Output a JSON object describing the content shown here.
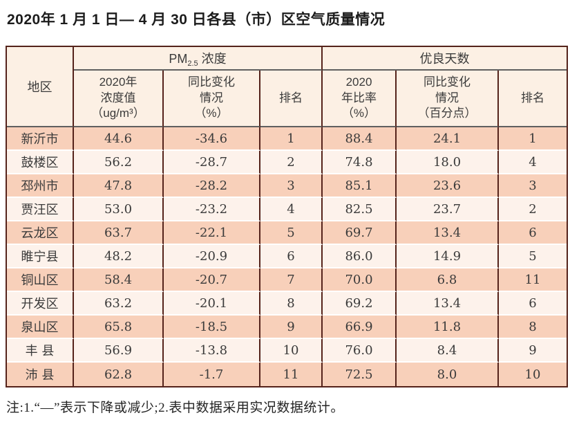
{
  "title": "2020年 1 月 1 日— 4 月 30 日各县（市）区空气质量情况",
  "table": {
    "corner_header": "地区",
    "group_headers": {
      "pm25": {
        "prefix": "PM",
        "sub": "2.5",
        "suffix": " 浓度"
      },
      "good_days": "优良天数"
    },
    "sub_headers": {
      "pm_value": "2020年\n浓度值\n（ug/m³）",
      "pm_change": "同比变化\n情况\n（%）",
      "pm_rank": "排名",
      "days_rate": "2020\n年比率\n（%）",
      "days_change": "同比变化\n情况\n（百分点）",
      "days_rank": "排名"
    },
    "rows": [
      {
        "region": "新沂市",
        "pm_value": "44.6",
        "pm_change": "-34.6",
        "pm_rank": "1",
        "days_rate": "88.4",
        "days_change": "24.1",
        "days_rank": "1"
      },
      {
        "region": "鼓楼区",
        "pm_value": "56.2",
        "pm_change": "-28.7",
        "pm_rank": "2",
        "days_rate": "74.8",
        "days_change": "18.0",
        "days_rank": "4"
      },
      {
        "region": "邳州市",
        "pm_value": "47.8",
        "pm_change": "-28.2",
        "pm_rank": "3",
        "days_rate": "85.1",
        "days_change": "23.6",
        "days_rank": "3"
      },
      {
        "region": "贾汪区",
        "pm_value": "53.0",
        "pm_change": "-23.2",
        "pm_rank": "4",
        "days_rate": "82.5",
        "days_change": "23.7",
        "days_rank": "2"
      },
      {
        "region": "云龙区",
        "pm_value": "63.7",
        "pm_change": "-22.1",
        "pm_rank": "5",
        "days_rate": "69.7",
        "days_change": "13.4",
        "days_rank": "6"
      },
      {
        "region": "睢宁县",
        "pm_value": "48.2",
        "pm_change": "-20.9",
        "pm_rank": "6",
        "days_rate": "86.0",
        "days_change": "14.9",
        "days_rank": "5"
      },
      {
        "region": "铜山区",
        "pm_value": "58.4",
        "pm_change": "-20.7",
        "pm_rank": "7",
        "days_rate": "70.0",
        "days_change": "6.8",
        "days_rank": "11"
      },
      {
        "region": "开发区",
        "pm_value": "63.2",
        "pm_change": "-20.1",
        "pm_rank": "8",
        "days_rate": "69.2",
        "days_change": "13.4",
        "days_rank": "6"
      },
      {
        "region": "泉山区",
        "pm_value": "65.8",
        "pm_change": "-18.5",
        "pm_rank": "9",
        "days_rate": "66.9",
        "days_change": "11.8",
        "days_rank": "8"
      },
      {
        "region": "丰 县",
        "pm_value": "56.9",
        "pm_change": "-13.8",
        "pm_rank": "10",
        "days_rate": "76.0",
        "days_change": "8.4",
        "days_rank": "9"
      },
      {
        "region": "沛 县",
        "pm_value": "62.8",
        "pm_change": "-1.7",
        "pm_rank": "11",
        "days_rate": "72.5",
        "days_change": "8.0",
        "days_rank": "10"
      }
    ]
  },
  "note": "注:1.“—”表示下降或减少;2.表中数据采用实况数据统计。",
  "colors": {
    "border": "#54221a",
    "header_separator": "#5f5f5f",
    "header_bg": "#fcf0e4",
    "row_dark": "#f8d0ba",
    "row_light": "#fdf2eb",
    "text": "#3a3a3a"
  }
}
